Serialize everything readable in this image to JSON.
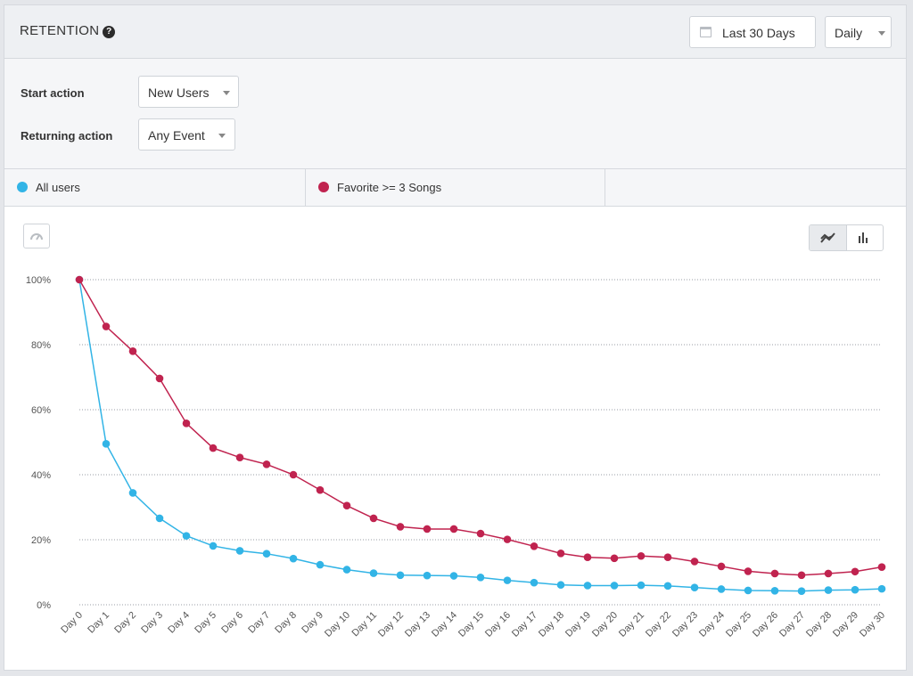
{
  "header": {
    "title": "RETENTION",
    "help_icon": "?",
    "date_range_label": "Last 30 Days",
    "interval_label": "Daily"
  },
  "filters": {
    "start_action_label": "Start action",
    "start_action_value": "New Users",
    "returning_action_label": "Returning action",
    "returning_action_value": "Any Event"
  },
  "legend": [
    {
      "name": "All users",
      "color": "#32b4e6"
    },
    {
      "name": "Favorite >= 3 Songs",
      "color": "#c0234f"
    }
  ],
  "chart_data": {
    "type": "line",
    "x": [
      "Day 0",
      "Day 1",
      "Day 2",
      "Day 3",
      "Day 4",
      "Day 5",
      "Day 6",
      "Day 7",
      "Day 8",
      "Day 9",
      "Day 10",
      "Day 11",
      "Day 12",
      "Day 13",
      "Day 14",
      "Day 15",
      "Day 16",
      "Day 17",
      "Day 18",
      "Day 19",
      "Day 20",
      "Day 21",
      "Day 22",
      "Day 23",
      "Day 24",
      "Day 25",
      "Day 26",
      "Day 27",
      "Day 28",
      "Day 29",
      "Day 30"
    ],
    "yticks": [
      "0%",
      "20%",
      "40%",
      "60%",
      "80%",
      "100%"
    ],
    "ylim": [
      0,
      100
    ],
    "grid": true,
    "series": [
      {
        "name": "All users",
        "color": "#32b4e6",
        "values": [
          100,
          49.5,
          34.4,
          26.6,
          21.2,
          18.1,
          16.6,
          15.7,
          14.2,
          12.3,
          10.8,
          9.7,
          9.1,
          9.0,
          8.9,
          8.4,
          7.5,
          6.8,
          6.1,
          5.9,
          5.9,
          6.0,
          5.8,
          5.3,
          4.8,
          4.4,
          4.3,
          4.2,
          4.5,
          4.6,
          4.9
        ]
      },
      {
        "name": "Favorite >= 3 Songs",
        "color": "#c0234f",
        "values": [
          100,
          85.6,
          78.0,
          69.6,
          55.8,
          48.2,
          45.3,
          43.2,
          40.0,
          35.3,
          30.5,
          26.6,
          24.0,
          23.3,
          23.3,
          21.9,
          20.1,
          18.0,
          15.8,
          14.6,
          14.3,
          15.0,
          14.6,
          13.3,
          11.8,
          10.3,
          9.6,
          9.1,
          9.6,
          10.2,
          11.6
        ]
      }
    ]
  },
  "toolbar": {
    "snapshot_icon": "dashboard-icon",
    "line_view_icon": "line-chart-icon",
    "bar_view_icon": "bar-chart-icon"
  }
}
